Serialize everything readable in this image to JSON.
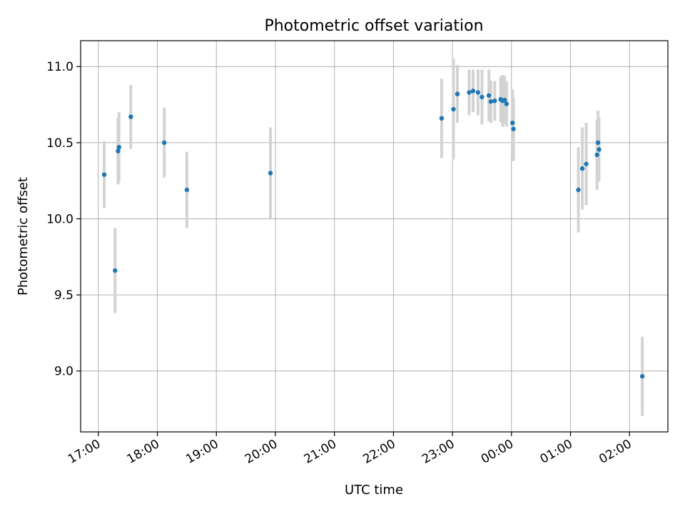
{
  "chart_data": {
    "type": "scatter",
    "title": "Photometric offset variation",
    "xlabel": "UTC time",
    "ylabel": "Photometric offset",
    "x_unit": "UTC time (hh:mm), spanning midnight",
    "xlim": [
      "16:42",
      "02:39"
    ],
    "ylim": [
      8.6,
      11.17
    ],
    "x_ticks": [
      "17:00",
      "18:00",
      "19:00",
      "20:00",
      "21:00",
      "22:00",
      "23:00",
      "00:00",
      "01:00",
      "02:00"
    ],
    "y_ticks": [
      "9.0",
      "9.5",
      "10.0",
      "10.5",
      "11.0"
    ],
    "grid": true,
    "legend": "none",
    "colors": {
      "point": "#1f77b4",
      "errorbar": "#d3d3d3",
      "grid": "#b0b0b0"
    },
    "points": [
      {
        "x": "17:06",
        "y": 10.29,
        "err": 0.22
      },
      {
        "x": "17:17",
        "y": 9.66,
        "err": 0.28
      },
      {
        "x": "17:20",
        "y": 10.445,
        "err": 0.22
      },
      {
        "x": "17:21",
        "y": 10.47,
        "err": 0.23
      },
      {
        "x": "17:33",
        "y": 10.67,
        "err": 0.21
      },
      {
        "x": "18:07",
        "y": 10.5,
        "err": 0.23
      },
      {
        "x": "18:30",
        "y": 10.19,
        "err": 0.25
      },
      {
        "x": "19:55",
        "y": 10.3,
        "err": 0.3
      },
      {
        "x": "22:49",
        "y": 10.66,
        "err": 0.26
      },
      {
        "x": "23:01",
        "y": 10.72,
        "err": 0.33
      },
      {
        "x": "23:05",
        "y": 10.82,
        "err": 0.19
      },
      {
        "x": "23:17",
        "y": 10.83,
        "err": 0.15
      },
      {
        "x": "23:21",
        "y": 10.84,
        "err": 0.14
      },
      {
        "x": "23:26",
        "y": 10.83,
        "err": 0.15
      },
      {
        "x": "23:30",
        "y": 10.8,
        "err": 0.18
      },
      {
        "x": "23:37",
        "y": 10.81,
        "err": 0.17
      },
      {
        "x": "23:39",
        "y": 10.77,
        "err": 0.14
      },
      {
        "x": "23:43",
        "y": 10.775,
        "err": 0.13
      },
      {
        "x": "23:49",
        "y": 10.785,
        "err": 0.15
      },
      {
        "x": "23:51",
        "y": 10.775,
        "err": 0.17
      },
      {
        "x": "23:53",
        "y": 10.78,
        "err": 0.16
      },
      {
        "x": "23:55",
        "y": 10.755,
        "err": 0.15
      },
      {
        "x": "00:01",
        "y": 10.63,
        "err": 0.22
      },
      {
        "x": "00:02",
        "y": 10.59,
        "err": 0.21
      },
      {
        "x": "01:08",
        "y": 10.19,
        "err": 0.28
      },
      {
        "x": "01:12",
        "y": 10.33,
        "err": 0.27
      },
      {
        "x": "01:16",
        "y": 10.36,
        "err": 0.27
      },
      {
        "x": "01:27",
        "y": 10.42,
        "err": 0.23
      },
      {
        "x": "01:28",
        "y": 10.5,
        "err": 0.21
      },
      {
        "x": "01:29",
        "y": 10.455,
        "err": 0.21
      },
      {
        "x": "02:13",
        "y": 8.965,
        "err": 0.26
      }
    ]
  }
}
